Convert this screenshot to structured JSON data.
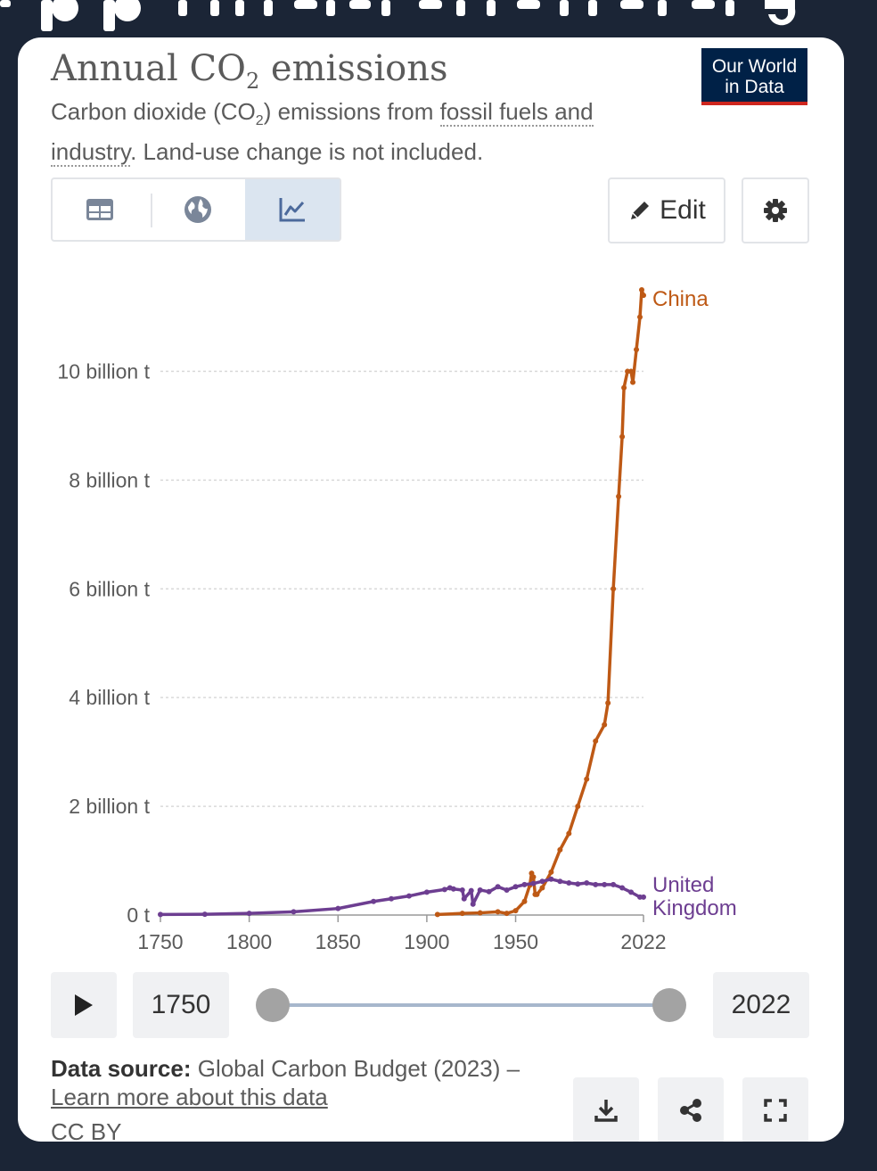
{
  "page": {
    "background": "#1b2536"
  },
  "header": {
    "title_main": "Annual CO",
    "title_sub": "2",
    "title_tail": " emissions",
    "subtitle_a": "Carbon dioxide (CO",
    "subtitle_sub": "2",
    "subtitle_b": ") emissions from ",
    "subtitle_link": "fossil fuels and industry",
    "subtitle_c": ". Land-use change is not included."
  },
  "logo": {
    "line1": "Our World",
    "line2": "in Data",
    "background": "#002147",
    "accent": "#ce261e"
  },
  "tabs": [
    {
      "name": "table",
      "icon": "table-icon"
    },
    {
      "name": "map",
      "icon": "globe-icon"
    },
    {
      "name": "chart",
      "icon": "line-chart-icon",
      "active": true
    }
  ],
  "toolbar": {
    "edit_label": "Edit",
    "settings_icon": "gear-icon"
  },
  "timeline": {
    "start_year": "1750",
    "end_year": "2022",
    "play_icon": "play-icon",
    "start_fraction": 0.0,
    "end_fraction": 1.0
  },
  "footer": {
    "source_label": "Data source:",
    "source_text": " Global Carbon Budget (2023) –",
    "learn_more": "Learn more about this data",
    "license": "CC BY",
    "download_icon": "download-icon",
    "share_icon": "share-icon",
    "fullscreen_icon": "fullscreen-icon"
  },
  "chart_data": {
    "type": "line",
    "ylim": [
      0,
      11500000000
    ],
    "xlim": [
      1750,
      2022
    ],
    "y_ticks": [
      0,
      2000000000,
      4000000000,
      6000000000,
      8000000000,
      10000000000
    ],
    "y_tick_labels": [
      "0 t",
      "2 billion t",
      "4 billion t",
      "6 billion t",
      "8 billion t",
      "10 billion t"
    ],
    "x_ticks": [
      1750,
      1800,
      1850,
      1900,
      1950,
      2022
    ],
    "x_tick_labels": [
      "1750",
      "1800",
      "1850",
      "1900",
      "1950",
      "2022"
    ],
    "grid": "horizontal dotted",
    "series": [
      {
        "name": "China",
        "color": "#be5915",
        "x": [
          1906,
          1920,
          1930,
          1940,
          1945,
          1950,
          1955,
          1958,
          1959,
          1960,
          1961,
          1962,
          1965,
          1970,
          1975,
          1980,
          1985,
          1990,
          1995,
          2000,
          2002,
          2005,
          2008,
          2010,
          2011,
          2013,
          2015,
          2016,
          2018,
          2020,
          2021,
          2022
        ],
        "y": [
          10000000,
          30000000,
          40000000,
          60000000,
          30000000,
          80000000,
          250000000,
          550000000,
          770000000,
          700000000,
          380000000,
          380000000,
          500000000,
          790000000,
          1200000000,
          1500000000,
          2000000000,
          2500000000,
          3200000000,
          3500000000,
          3900000000,
          6000000000,
          7700000000,
          8800000000,
          9700000000,
          10000000000,
          10000000000,
          9800000000,
          10400000000,
          11000000000,
          11500000000,
          11400000000
        ]
      },
      {
        "name": "United Kingdom",
        "color": "#6d3e91",
        "x": [
          1750,
          1775,
          1800,
          1825,
          1850,
          1870,
          1880,
          1890,
          1900,
          1910,
          1913,
          1915,
          1920,
          1921,
          1925,
          1926,
          1930,
          1935,
          1940,
          1945,
          1950,
          1955,
          1960,
          1965,
          1970,
          1975,
          1980,
          1985,
          1990,
          1995,
          2000,
          2005,
          2010,
          2015,
          2020,
          2022
        ],
        "y": [
          10000000,
          15000000,
          30000000,
          60000000,
          120000000,
          250000000,
          300000000,
          350000000,
          420000000,
          470000000,
          500000000,
          480000000,
          460000000,
          300000000,
          450000000,
          200000000,
          460000000,
          430000000,
          520000000,
          460000000,
          520000000,
          560000000,
          580000000,
          620000000,
          660000000,
          620000000,
          590000000,
          570000000,
          590000000,
          560000000,
          560000000,
          560000000,
          500000000,
          420000000,
          330000000,
          330000000
        ]
      }
    ]
  }
}
